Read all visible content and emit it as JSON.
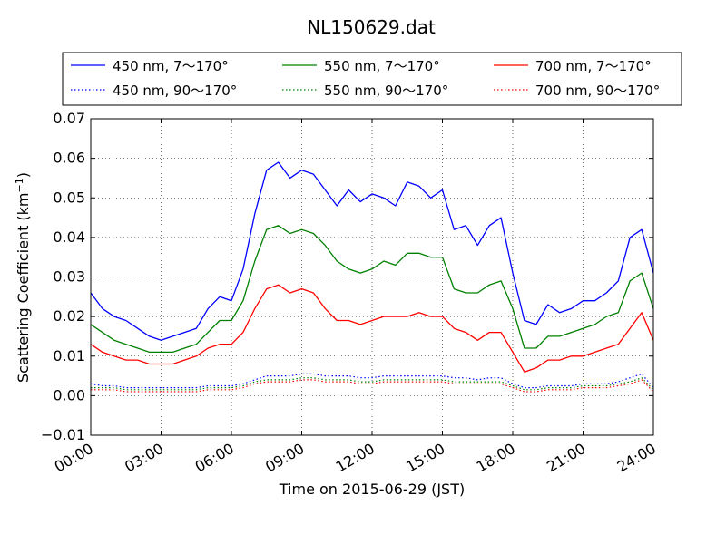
{
  "chart_data": {
    "type": "line",
    "title": "NL150629.dat",
    "xlabel": "Time on 2015-06-29 (JST)",
    "ylabel": "Scattering Coefficient (km",
    "ylabel_sup": "−1",
    "ylabel_close": ")",
    "xlim": [
      "2015-06-29 00:00",
      "2015-06-30 00:00"
    ],
    "ylim": [
      -0.01,
      0.07
    ],
    "x_tick_labels": [
      "00:00",
      "03:00",
      "06:00",
      "09:00",
      "12:00",
      "15:00",
      "18:00",
      "21:00",
      "24:00"
    ],
    "y_tick_labels": [
      "−0.01",
      "0.00",
      "0.01",
      "0.02",
      "0.03",
      "0.04",
      "0.05",
      "0.06",
      "0.07"
    ],
    "grid": true,
    "legend_position": "top",
    "x": [
      "00:00",
      "00:30",
      "01:00",
      "01:30",
      "02:00",
      "02:30",
      "03:00",
      "03:30",
      "04:00",
      "04:30",
      "05:00",
      "05:30",
      "06:00",
      "06:30",
      "07:00",
      "07:30",
      "08:00",
      "08:30",
      "09:00",
      "09:30",
      "10:00",
      "10:30",
      "11:00",
      "11:30",
      "12:00",
      "12:30",
      "13:00",
      "13:30",
      "14:00",
      "14:30",
      "15:00",
      "15:30",
      "16:00",
      "16:30",
      "17:00",
      "17:30",
      "18:00",
      "18:30",
      "19:00",
      "19:30",
      "20:00",
      "20:30",
      "21:00",
      "21:30",
      "22:00",
      "22:30",
      "23:00",
      "23:30",
      "24:00"
    ],
    "series": [
      {
        "name": "450 nm, 7～170°",
        "color": "#0000ff",
        "style": "solid",
        "values": [
          0.026,
          0.022,
          0.02,
          0.019,
          0.017,
          0.015,
          0.014,
          0.015,
          0.016,
          0.017,
          0.022,
          0.025,
          0.024,
          0.032,
          0.046,
          0.057,
          0.059,
          0.055,
          0.057,
          0.056,
          0.052,
          0.048,
          0.052,
          0.049,
          0.051,
          0.05,
          0.048,
          0.054,
          0.053,
          0.05,
          0.052,
          0.042,
          0.043,
          0.038,
          0.043,
          0.045,
          0.031,
          0.019,
          0.018,
          0.023,
          0.021,
          0.022,
          0.024,
          0.024,
          0.026,
          0.029,
          0.04,
          0.042,
          0.031
        ]
      },
      {
        "name": "550 nm, 7～170°",
        "color": "#008000",
        "style": "solid",
        "values": [
          0.018,
          0.016,
          0.014,
          0.013,
          0.012,
          0.011,
          0.011,
          0.011,
          0.012,
          0.013,
          0.016,
          0.019,
          0.019,
          0.024,
          0.034,
          0.042,
          0.043,
          0.041,
          0.042,
          0.041,
          0.038,
          0.034,
          0.032,
          0.031,
          0.032,
          0.034,
          0.033,
          0.036,
          0.036,
          0.035,
          0.035,
          0.027,
          0.026,
          0.026,
          0.028,
          0.029,
          0.022,
          0.012,
          0.012,
          0.015,
          0.015,
          0.016,
          0.017,
          0.018,
          0.02,
          0.021,
          0.029,
          0.031,
          0.022
        ]
      },
      {
        "name": "700 nm, 7～170°",
        "color": "#ff0000",
        "style": "solid",
        "values": [
          0.013,
          0.011,
          0.01,
          0.009,
          0.009,
          0.008,
          0.008,
          0.008,
          0.009,
          0.01,
          0.012,
          0.013,
          0.013,
          0.016,
          0.022,
          0.027,
          0.028,
          0.026,
          0.027,
          0.026,
          0.022,
          0.019,
          0.019,
          0.018,
          0.019,
          0.02,
          0.02,
          0.02,
          0.021,
          0.02,
          0.02,
          0.017,
          0.016,
          0.014,
          0.016,
          0.016,
          0.011,
          0.006,
          0.007,
          0.009,
          0.009,
          0.01,
          0.01,
          0.011,
          0.012,
          0.013,
          0.017,
          0.021,
          0.014
        ]
      },
      {
        "name": "450 nm, 90～170°",
        "color": "#0000ff",
        "style": "dotted",
        "values": [
          0.003,
          0.0025,
          0.0025,
          0.002,
          0.002,
          0.002,
          0.002,
          0.002,
          0.002,
          0.002,
          0.0025,
          0.0025,
          0.0025,
          0.003,
          0.004,
          0.005,
          0.005,
          0.005,
          0.0055,
          0.0055,
          0.005,
          0.005,
          0.005,
          0.0045,
          0.0045,
          0.005,
          0.005,
          0.005,
          0.005,
          0.005,
          0.005,
          0.0045,
          0.0045,
          0.004,
          0.0045,
          0.0045,
          0.003,
          0.002,
          0.002,
          0.0025,
          0.0025,
          0.0025,
          0.003,
          0.003,
          0.003,
          0.0035,
          0.0045,
          0.0055,
          0.002
        ]
      },
      {
        "name": "550 nm, 90～170°",
        "color": "#008000",
        "style": "dotted",
        "values": [
          0.002,
          0.002,
          0.002,
          0.0015,
          0.0015,
          0.0015,
          0.0015,
          0.0015,
          0.0015,
          0.0015,
          0.002,
          0.002,
          0.002,
          0.0025,
          0.0035,
          0.004,
          0.004,
          0.004,
          0.0045,
          0.0045,
          0.004,
          0.004,
          0.004,
          0.0035,
          0.0035,
          0.004,
          0.004,
          0.004,
          0.004,
          0.004,
          0.004,
          0.0035,
          0.0035,
          0.0035,
          0.0035,
          0.0035,
          0.0025,
          0.0015,
          0.0015,
          0.002,
          0.002,
          0.002,
          0.0025,
          0.0025,
          0.0025,
          0.003,
          0.0035,
          0.0045,
          0.0015
        ]
      },
      {
        "name": "700 nm, 90～170°",
        "color": "#ff0000",
        "style": "dotted",
        "values": [
          0.0015,
          0.0015,
          0.0015,
          0.001,
          0.001,
          0.001,
          0.001,
          0.001,
          0.001,
          0.001,
          0.0015,
          0.0015,
          0.0015,
          0.002,
          0.003,
          0.0035,
          0.0035,
          0.0035,
          0.004,
          0.004,
          0.0035,
          0.0035,
          0.0035,
          0.003,
          0.003,
          0.0035,
          0.0035,
          0.0035,
          0.0035,
          0.0035,
          0.0035,
          0.003,
          0.003,
          0.003,
          0.003,
          0.003,
          0.002,
          0.001,
          0.001,
          0.0015,
          0.0015,
          0.0015,
          0.002,
          0.002,
          0.002,
          0.0025,
          0.003,
          0.004,
          0.001
        ]
      }
    ],
    "legend_order": [
      0,
      1,
      2,
      3,
      4,
      5
    ]
  }
}
